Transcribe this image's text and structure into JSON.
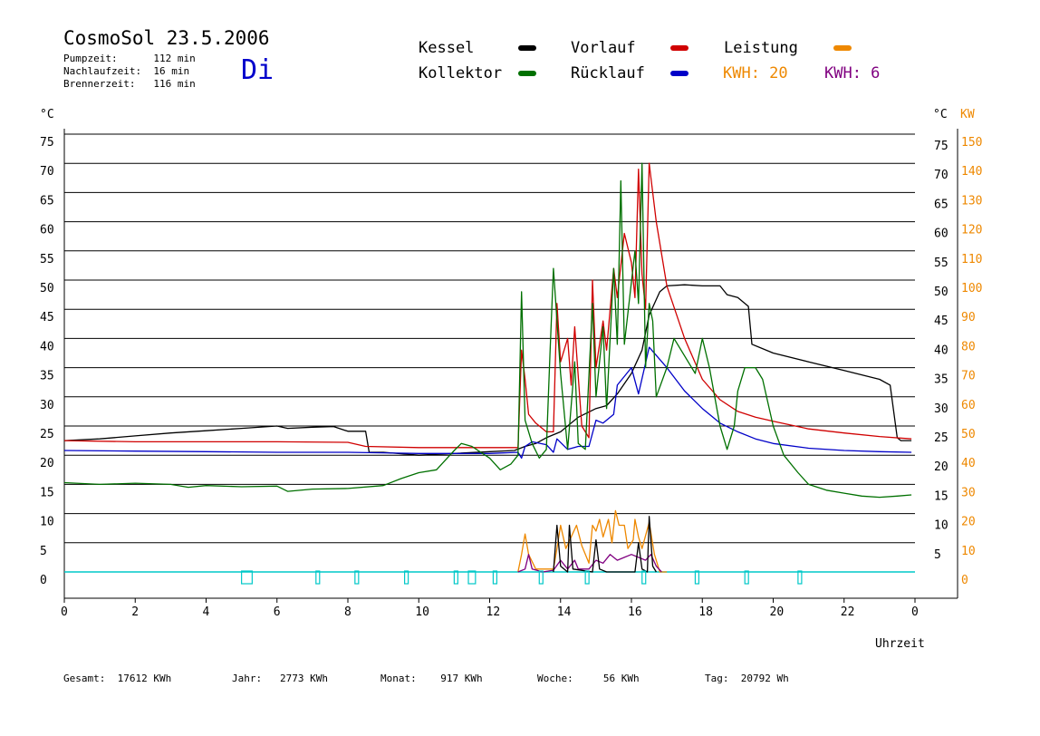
{
  "header": {
    "title": "CosmoSol 23.5.2006",
    "pumpzeit": "Pumpzeit:      112 min",
    "nachlaufzeit": "Nachlaufzeit:  16 min",
    "brennerzeit": "Brennerzeit:   116 min",
    "weekday": "Di"
  },
  "legend": {
    "kessel": "Kessel",
    "kollektor": "Kollektor",
    "vorlauf": "Vorlauf",
    "ruecklauf": "Rücklauf",
    "leistung": "Leistung",
    "kwh_1": "KWH: 20",
    "kwh_2": "KWH: 6"
  },
  "footer": {
    "gesamt": "Gesamt:  17612 KWh",
    "jahr": "Jahr:   2773 KWh",
    "monat": "Monat:    917 KWh",
    "woche": "Woche:     56 KWh",
    "tag": "Tag:  20792 Wh"
  },
  "colors": {
    "kessel": "#000000",
    "kollektor": "#007000",
    "vorlauf": "#d00000",
    "ruecklauf": "#0000c8",
    "leistung": "#ee8800",
    "kwh2": "#800080",
    "pump": "#00c8c8",
    "kw_axis": "#ee8800",
    "day": "#0000cc"
  },
  "chart_data": {
    "type": "line",
    "x_label": "Uhrzeit",
    "left_unit": "°C",
    "right_unit": "°C",
    "right2_unit": "KW",
    "x_range": [
      0,
      24
    ],
    "x_ticks": [
      "0",
      "2",
      "4",
      "6",
      "8",
      "10",
      "12",
      "14",
      "16",
      "18",
      "20",
      "22",
      "0"
    ],
    "x_tick_values": [
      0,
      2,
      4,
      6,
      8,
      10,
      12,
      14,
      16,
      18,
      20,
      22,
      24
    ],
    "y_range": [
      0,
      75
    ],
    "y_ticks": [
      0,
      5,
      10,
      15,
      20,
      25,
      30,
      35,
      40,
      45,
      50,
      55,
      60,
      65,
      70,
      75
    ],
    "left_tick_labels": [
      "0",
      "5",
      "10",
      "15",
      "20",
      "25",
      "30",
      "35",
      "40",
      "45",
      "50",
      "55",
      "60",
      "65",
      "70",
      "75"
    ],
    "right_tick_labels": [
      "",
      "5",
      "10",
      "15",
      "20",
      "25",
      "30",
      "35",
      "40",
      "45",
      "50",
      "55",
      "60",
      "65",
      "70",
      "75"
    ],
    "kw_tick_labels": [
      "0",
      "10",
      "20",
      "30",
      "40",
      "50",
      "60",
      "70",
      "80",
      "90",
      "100",
      "110",
      "120",
      "130",
      "140",
      "150"
    ],
    "grid": "horizontal",
    "series": [
      {
        "name": "Kessel",
        "color": "#000000",
        "points": [
          [
            0,
            22.5
          ],
          [
            1,
            22.8
          ],
          [
            2,
            23.3
          ],
          [
            3,
            23.8
          ],
          [
            4,
            24.2
          ],
          [
            5,
            24.6
          ],
          [
            6,
            25
          ],
          [
            6.3,
            24.6
          ],
          [
            7,
            24.8
          ],
          [
            7.6,
            24.9
          ],
          [
            8,
            24.1
          ],
          [
            8.5,
            24.1
          ],
          [
            8.6,
            20.5
          ],
          [
            9,
            20.5
          ],
          [
            10,
            20
          ],
          [
            11,
            20.3
          ],
          [
            12,
            20.6
          ],
          [
            12.7,
            20.8
          ],
          [
            13,
            21.5
          ],
          [
            13.3,
            22
          ],
          [
            13.6,
            23
          ],
          [
            14,
            24
          ],
          [
            14.5,
            26.5
          ],
          [
            15,
            28
          ],
          [
            15.3,
            28.5
          ],
          [
            15.6,
            30.5
          ],
          [
            16,
            34
          ],
          [
            16.3,
            38
          ],
          [
            16.5,
            44
          ],
          [
            16.8,
            48
          ],
          [
            17,
            49
          ],
          [
            17.5,
            49.2
          ],
          [
            18,
            49
          ],
          [
            18.5,
            49
          ],
          [
            18.7,
            47.5
          ],
          [
            19,
            47
          ],
          [
            19.3,
            45.5
          ],
          [
            19.4,
            39
          ],
          [
            20,
            37.5
          ],
          [
            21,
            36
          ],
          [
            22,
            34.5
          ],
          [
            23,
            33
          ],
          [
            23.3,
            32
          ],
          [
            23.5,
            23
          ],
          [
            23.6,
            22.5
          ],
          [
            23.9,
            22.5
          ]
        ]
      },
      {
        "name": "Vorlauf",
        "color": "#d00000",
        "points": [
          [
            0,
            22.5
          ],
          [
            2,
            22.3
          ],
          [
            4,
            22.3
          ],
          [
            6,
            22.3
          ],
          [
            8,
            22.2
          ],
          [
            8.5,
            21.5
          ],
          [
            10,
            21.3
          ],
          [
            12,
            21.3
          ],
          [
            12.8,
            21.3
          ],
          [
            12.9,
            38
          ],
          [
            13,
            33
          ],
          [
            13.1,
            27
          ],
          [
            13.3,
            25.5
          ],
          [
            13.6,
            24
          ],
          [
            13.8,
            24
          ],
          [
            13.9,
            46
          ],
          [
            14,
            36
          ],
          [
            14.2,
            40
          ],
          [
            14.3,
            32
          ],
          [
            14.4,
            42
          ],
          [
            14.6,
            25
          ],
          [
            14.8,
            23
          ],
          [
            14.9,
            50
          ],
          [
            15,
            35
          ],
          [
            15.2,
            43
          ],
          [
            15.3,
            38
          ],
          [
            15.5,
            52
          ],
          [
            15.6,
            47
          ],
          [
            15.8,
            58
          ],
          [
            16,
            53
          ],
          [
            16.1,
            47
          ],
          [
            16.2,
            69
          ],
          [
            16.3,
            51
          ],
          [
            16.4,
            45
          ],
          [
            16.5,
            70
          ],
          [
            16.7,
            60
          ],
          [
            17,
            49
          ],
          [
            17.5,
            40
          ],
          [
            18,
            33
          ],
          [
            18.5,
            29.5
          ],
          [
            19,
            27.5
          ],
          [
            19.5,
            26.5
          ],
          [
            20,
            25.8
          ],
          [
            21,
            24.5
          ],
          [
            22,
            23.8
          ],
          [
            23,
            23.2
          ],
          [
            23.9,
            22.8
          ]
        ]
      },
      {
        "name": "Rücklauf",
        "color": "#0000c8",
        "points": [
          [
            0,
            20.8
          ],
          [
            2,
            20.7
          ],
          [
            4,
            20.6
          ],
          [
            6,
            20.5
          ],
          [
            8,
            20.5
          ],
          [
            9,
            20.4
          ],
          [
            10,
            20.3
          ],
          [
            12,
            20.3
          ],
          [
            12.8,
            20.5
          ],
          [
            12.9,
            19.5
          ],
          [
            13,
            21.5
          ],
          [
            13.2,
            22.3
          ],
          [
            13.6,
            21.8
          ],
          [
            13.8,
            20.5
          ],
          [
            13.9,
            22.8
          ],
          [
            14.2,
            21
          ],
          [
            14.5,
            21.5
          ],
          [
            14.8,
            21.5
          ],
          [
            15,
            26
          ],
          [
            15.2,
            25.5
          ],
          [
            15.5,
            27
          ],
          [
            15.6,
            32
          ],
          [
            16,
            35
          ],
          [
            16.2,
            30.5
          ],
          [
            16.5,
            38.5
          ],
          [
            17,
            35
          ],
          [
            17.5,
            31
          ],
          [
            18,
            28
          ],
          [
            18.5,
            25.5
          ],
          [
            19,
            24
          ],
          [
            19.5,
            22.8
          ],
          [
            20,
            22
          ],
          [
            21,
            21.2
          ],
          [
            22,
            20.8
          ],
          [
            23,
            20.6
          ],
          [
            23.9,
            20.5
          ]
        ]
      },
      {
        "name": "Kollektor",
        "color": "#007000",
        "points": [
          [
            0,
            15.3
          ],
          [
            1,
            15
          ],
          [
            2,
            15.2
          ],
          [
            3,
            15
          ],
          [
            3.5,
            14.5
          ],
          [
            4,
            14.8
          ],
          [
            5,
            14.6
          ],
          [
            6,
            14.7
          ],
          [
            6.3,
            13.8
          ],
          [
            7,
            14.2
          ],
          [
            8,
            14.3
          ],
          [
            9,
            14.8
          ],
          [
            9.5,
            16
          ],
          [
            10,
            17
          ],
          [
            10.5,
            17.5
          ],
          [
            11,
            20.8
          ],
          [
            11.2,
            22
          ],
          [
            11.5,
            21.5
          ],
          [
            12,
            19.5
          ],
          [
            12.3,
            17.5
          ],
          [
            12.6,
            18.5
          ],
          [
            12.8,
            20
          ],
          [
            12.9,
            48
          ],
          [
            13,
            26
          ],
          [
            13.2,
            22
          ],
          [
            13.4,
            19.5
          ],
          [
            13.6,
            21
          ],
          [
            13.7,
            37
          ],
          [
            13.8,
            52
          ],
          [
            14,
            34
          ],
          [
            14.2,
            21
          ],
          [
            14.4,
            36
          ],
          [
            14.5,
            22
          ],
          [
            14.7,
            21
          ],
          [
            14.9,
            46
          ],
          [
            15,
            30
          ],
          [
            15.2,
            42
          ],
          [
            15.3,
            28
          ],
          [
            15.5,
            52
          ],
          [
            15.6,
            39
          ],
          [
            15.7,
            67
          ],
          [
            15.8,
            39
          ],
          [
            16.1,
            55
          ],
          [
            16.2,
            46
          ],
          [
            16.3,
            70
          ],
          [
            16.4,
            35
          ],
          [
            16.5,
            46
          ],
          [
            16.6,
            43
          ],
          [
            16.7,
            30
          ],
          [
            17,
            35
          ],
          [
            17.2,
            40
          ],
          [
            17.5,
            37
          ],
          [
            17.8,
            34
          ],
          [
            18,
            40
          ],
          [
            18.2,
            35
          ],
          [
            18.5,
            25
          ],
          [
            18.7,
            21
          ],
          [
            18.9,
            25
          ],
          [
            19,
            31
          ],
          [
            19.2,
            35
          ],
          [
            19.5,
            35
          ],
          [
            19.7,
            33
          ],
          [
            20,
            25
          ],
          [
            20.3,
            20
          ],
          [
            20.7,
            17
          ],
          [
            21,
            15
          ],
          [
            21.5,
            14
          ],
          [
            22,
            13.5
          ],
          [
            22.5,
            13
          ],
          [
            23,
            12.8
          ],
          [
            23.5,
            13
          ],
          [
            23.9,
            13.2
          ]
        ]
      },
      {
        "name": "Leistung",
        "color": "#ee8800",
        "points": [
          [
            12.8,
            0
          ],
          [
            12.9,
            3
          ],
          [
            13,
            6.5
          ],
          [
            13.1,
            3
          ],
          [
            13.3,
            0.5
          ],
          [
            13.8,
            0.5
          ],
          [
            13.9,
            4
          ],
          [
            14,
            8
          ],
          [
            14.15,
            4
          ],
          [
            14.3,
            6
          ],
          [
            14.45,
            8
          ],
          [
            14.6,
            4.5
          ],
          [
            14.8,
            1.5
          ],
          [
            14.9,
            8
          ],
          [
            15,
            7
          ],
          [
            15.1,
            9
          ],
          [
            15.2,
            6
          ],
          [
            15.35,
            9
          ],
          [
            15.45,
            5
          ],
          [
            15.55,
            10.5
          ],
          [
            15.65,
            8
          ],
          [
            15.8,
            8
          ],
          [
            15.9,
            4
          ],
          [
            16.05,
            5.5
          ],
          [
            16.1,
            9
          ],
          [
            16.2,
            6
          ],
          [
            16.3,
            4
          ],
          [
            16.5,
            8.5
          ],
          [
            16.65,
            3
          ],
          [
            16.8,
            0
          ],
          [
            17,
            0
          ]
        ]
      },
      {
        "name": "KWH 6",
        "color": "#800080",
        "points": [
          [
            12.8,
            0
          ],
          [
            13,
            0.5
          ],
          [
            13.1,
            3
          ],
          [
            13.2,
            0.5
          ],
          [
            13.5,
            0
          ],
          [
            13.8,
            0.3
          ],
          [
            14,
            2
          ],
          [
            14.2,
            0.5
          ],
          [
            14.4,
            2
          ],
          [
            14.5,
            0.5
          ],
          [
            14.8,
            0.5
          ],
          [
            15,
            2
          ],
          [
            15.2,
            1.5
          ],
          [
            15.4,
            3
          ],
          [
            15.6,
            2
          ],
          [
            15.8,
            2.5
          ],
          [
            16,
            3
          ],
          [
            16.2,
            2.5
          ],
          [
            16.4,
            2
          ],
          [
            16.55,
            3
          ],
          [
            16.7,
            1
          ],
          [
            16.85,
            0
          ]
        ]
      },
      {
        "name": "KWH 20",
        "color": "#000000",
        "points": [
          [
            13.8,
            0
          ],
          [
            13.9,
            8
          ],
          [
            14,
            1
          ],
          [
            14.2,
            0
          ],
          [
            14.25,
            8
          ],
          [
            14.35,
            0.5
          ],
          [
            14.9,
            0
          ],
          [
            15,
            5.5
          ],
          [
            15.1,
            0.5
          ],
          [
            15.3,
            0
          ],
          [
            16.1,
            0
          ],
          [
            16.2,
            5
          ],
          [
            16.3,
            0.5
          ],
          [
            16.45,
            0
          ],
          [
            16.5,
            9.5
          ],
          [
            16.6,
            1
          ],
          [
            16.7,
            0
          ]
        ]
      }
    ],
    "pump_intervals": [
      [
        5.0,
        5.3
      ],
      [
        7.1,
        7.2
      ],
      [
        8.2,
        8.3
      ],
      [
        9.6,
        9.7
      ],
      [
        11.0,
        11.1
      ],
      [
        11.4,
        11.6
      ],
      [
        12.1,
        12.2
      ],
      [
        13.4,
        13.5
      ],
      [
        14.7,
        14.8
      ],
      [
        16.3,
        16.4
      ],
      [
        17.8,
        17.9
      ],
      [
        19.2,
        19.3
      ],
      [
        20.7,
        20.8
      ]
    ]
  }
}
